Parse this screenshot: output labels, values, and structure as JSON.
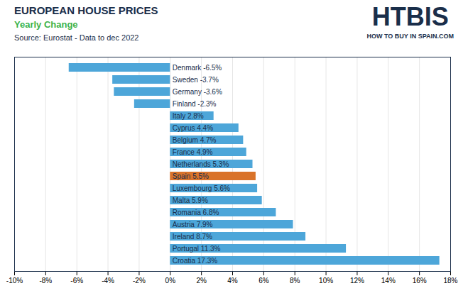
{
  "chart_data": {
    "type": "bar",
    "orientation": "horizontal",
    "title": "EUROPEAN HOUSE PRICES",
    "subtitle": "Yearly Change",
    "caption": "Source: Eurostat - Data to dec 2022",
    "annotations": [
      "HTBIS",
      "HOW TO BUY IN SPAIN.COM"
    ],
    "categories": [
      "Croatia",
      "Portugal",
      "Ireland",
      "Austria",
      "Romania",
      "Malta",
      "Luxembourg",
      "Spain",
      "Netherlands",
      "France",
      "Belgium",
      "Cyprus",
      "Italy",
      "Finland",
      "Germany",
      "Sweden",
      "Denmark"
    ],
    "values": [
      17.3,
      11.3,
      8.7,
      7.9,
      6.8,
      5.9,
      5.6,
      5.5,
      5.3,
      4.9,
      4.7,
      4.4,
      2.8,
      -2.3,
      -3.6,
      -3.7,
      -6.5
    ],
    "data_labels": true,
    "value_labels": [
      "Croatia 17.3%",
      "Portugal 11.3%",
      "Ireland 8.7%",
      "Austria 7.9%",
      "Romania 6.8%",
      "Malta 5.9%",
      "Luxembourg 5.6%",
      "Spain 5.5%",
      "Netherlands 5.3%",
      "France 4.9%",
      "Belgium 4.7%",
      "Cyprus 4.4%",
      "Italy 2.8%",
      "Finland -2.3%",
      "Germany -3.6%",
      "Sweden -3.7%",
      "Denmark -6.5%"
    ],
    "colors": [
      "#4da6d9",
      "#4da6d9",
      "#4da6d9",
      "#4da6d9",
      "#4da6d9",
      "#4da6d9",
      "#4da6d9",
      "#d9732a",
      "#4da6d9",
      "#4da6d9",
      "#4da6d9",
      "#4da6d9",
      "#4da6d9",
      "#4da6d9",
      "#4da6d9",
      "#4da6d9",
      "#4da6d9"
    ],
    "xlim": [
      -10,
      18
    ],
    "xticks": [
      {
        "value": -10,
        "label": "-10%"
      },
      {
        "value": -8,
        "label": "-8%"
      },
      {
        "value": -6,
        "label": "-6%"
      },
      {
        "value": -4,
        "label": "-4%"
      },
      {
        "value": -2,
        "label": "-2%"
      },
      {
        "value": 0,
        "label": "0%"
      },
      {
        "value": 2,
        "label": "2%"
      },
      {
        "value": 4,
        "label": "4%"
      },
      {
        "value": 6,
        "label": "6%"
      },
      {
        "value": 8,
        "label": "8%"
      },
      {
        "value": 10,
        "label": "10%"
      },
      {
        "value": 12,
        "label": "12%"
      },
      {
        "value": 14,
        "label": "14%"
      },
      {
        "value": 16,
        "label": "16%"
      },
      {
        "value": 18,
        "label": "18%"
      }
    ],
    "grid": true,
    "tick_labels": "x"
  }
}
